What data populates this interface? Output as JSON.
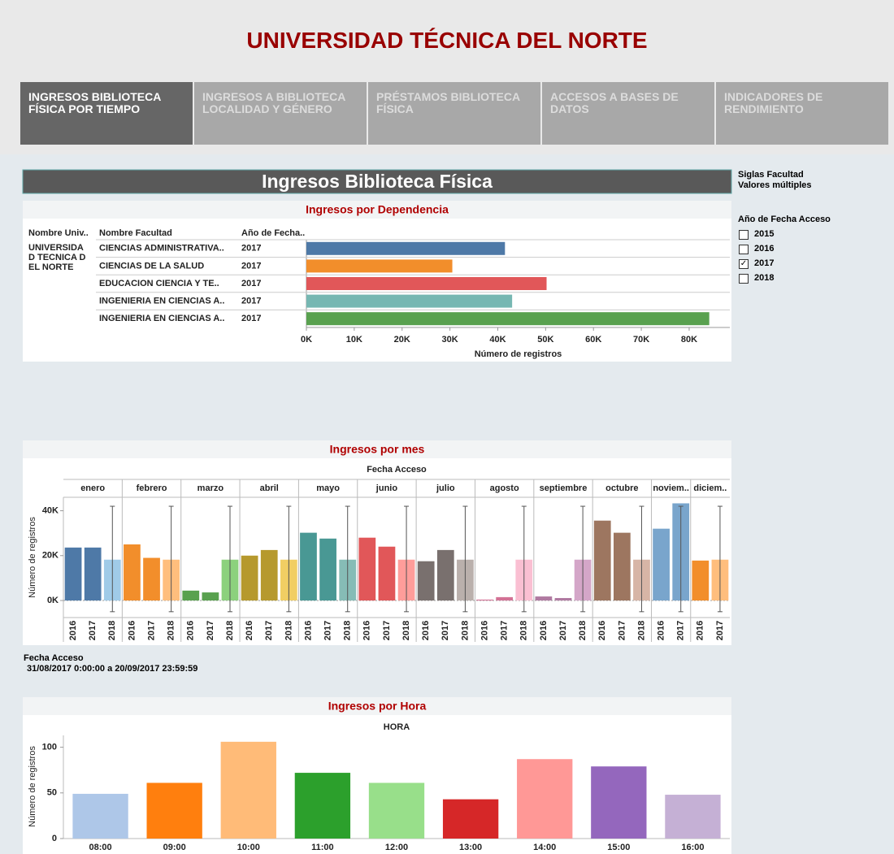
{
  "header": {
    "title": "UNIVERSIDAD TÉCNICA DEL NORTE"
  },
  "tabs": [
    {
      "label": "INGRESOS BIBLIOTECA FÍSICA POR TIEMPO",
      "active": true
    },
    {
      "label": "INGRESOS A BIBLIOTECA LOCALIDAD Y GÉNERO",
      "active": false
    },
    {
      "label": "PRÉSTAMOS BIBLIOTECA FÍSICA",
      "active": false
    },
    {
      "label": "ACCESOS A BASES DE DATOS",
      "active": false
    },
    {
      "label": "INDICADORES DE RENDIMIENTO",
      "active": false
    }
  ],
  "dashboard": {
    "title": "Ingresos Biblioteca Física"
  },
  "filters": {
    "siglas": {
      "label": "Siglas Facultad",
      "value": "Valores múltiples"
    },
    "year": {
      "label": "Año de Fecha Acceso",
      "options": [
        {
          "label": "2015",
          "checked": false
        },
        {
          "label": "2016",
          "checked": false
        },
        {
          "label": "2017",
          "checked": true
        },
        {
          "label": "2018",
          "checked": false
        }
      ]
    }
  },
  "date_filter": {
    "label": "Fecha Acceso",
    "value": "31/08/2017 0:00:00 a 20/09/2017 23:59:59"
  },
  "chart_data": [
    {
      "type": "hbar",
      "title": "Ingresos por Dependencia",
      "columns": [
        "Nombre Univ..",
        "Nombre Facultad",
        "Año de Fecha.."
      ],
      "university": "UNIVERSIDAD TECNICA DEL NORTE",
      "categories": [
        "CIENCIAS ADMINISTRATIVA..",
        "CIENCIAS DE LA SALUD",
        "EDUCACION CIENCIA Y TE..",
        "INGENIERIA EN CIENCIAS A..",
        "INGENIERIA EN CIENCIAS A.."
      ],
      "years": [
        "2017",
        "2017",
        "2017",
        "2017",
        "2017"
      ],
      "values": [
        41500,
        30500,
        50200,
        43000,
        84200
      ],
      "colors": [
        "#4e79a7",
        "#f28e2b",
        "#e15759",
        "#76b7b2",
        "#59a14f"
      ],
      "xlim": [
        0,
        88500
      ],
      "xticks": [
        {
          "value": 0,
          "label": "0K"
        },
        {
          "value": 10000,
          "label": "10K"
        },
        {
          "value": 20000,
          "label": "20K"
        },
        {
          "value": 30000,
          "label": "30K"
        },
        {
          "value": 40000,
          "label": "40K"
        },
        {
          "value": 50000,
          "label": "50K"
        },
        {
          "value": 60000,
          "label": "60K"
        },
        {
          "value": 70000,
          "label": "70K"
        },
        {
          "value": 80000,
          "label": "80K"
        }
      ],
      "xlabel": "Número de registros"
    },
    {
      "type": "grouped",
      "title": "Ingresos por mes",
      "header": "Fecha Acceso",
      "ylabel": "Número de registros",
      "ylim": [
        -7600,
        46000
      ],
      "yticks": [
        {
          "value": 0,
          "label": "0K"
        },
        {
          "value": 20000,
          "label": "20K"
        },
        {
          "value": 40000,
          "label": "40K"
        }
      ],
      "reference_range": [
        -5000,
        42000
      ],
      "groups": [
        {
          "name": "enero",
          "categories": [
            "2016",
            "2017",
            "2018"
          ],
          "values": [
            23600,
            23600,
            18200
          ],
          "colors": [
            "#4e79a7",
            "#4e79a7",
            "#a0cbe8"
          ]
        },
        {
          "name": "febrero",
          "categories": [
            "2016",
            "2017",
            "2018"
          ],
          "values": [
            25000,
            19000,
            18200
          ],
          "colors": [
            "#f28e2b",
            "#f28e2b",
            "#ffbe7d"
          ]
        },
        {
          "name": "marzo",
          "categories": [
            "2016",
            "2017",
            "2018"
          ],
          "values": [
            4400,
            3600,
            18200
          ],
          "colors": [
            "#59a14f",
            "#59a14f",
            "#8cd17d"
          ]
        },
        {
          "name": "abril",
          "categories": [
            "2016",
            "2017",
            "2018"
          ],
          "values": [
            20000,
            22500,
            18200
          ],
          "colors": [
            "#b6992d",
            "#b6992d",
            "#f1ce63"
          ]
        },
        {
          "name": "mayo",
          "categories": [
            "2016",
            "2017",
            "2018"
          ],
          "values": [
            30200,
            27600,
            18200
          ],
          "colors": [
            "#499894",
            "#499894",
            "#86bcb6"
          ]
        },
        {
          "name": "junio",
          "categories": [
            "2016",
            "2017",
            "2018"
          ],
          "values": [
            28000,
            24000,
            18200
          ],
          "colors": [
            "#e15759",
            "#e15759",
            "#ff9d9a"
          ]
        },
        {
          "name": "julio",
          "categories": [
            "2016",
            "2017",
            "2018"
          ],
          "values": [
            17500,
            22500,
            18200
          ],
          "colors": [
            "#79706e",
            "#79706e",
            "#bab0ac"
          ]
        },
        {
          "name": "agosto",
          "categories": [
            "2016",
            "2017",
            "2018"
          ],
          "values": [
            400,
            1500,
            18200
          ],
          "colors": [
            "#d37295",
            "#d37295",
            "#fabfd2"
          ]
        },
        {
          "name": "septiembre",
          "categories": [
            "2016",
            "2017",
            "2018"
          ],
          "values": [
            1800,
            1100,
            18200
          ],
          "colors": [
            "#b07aa1",
            "#b07aa1",
            "#d4a6c8"
          ]
        },
        {
          "name": "octubre",
          "categories": [
            "2016",
            "2017",
            "2018"
          ],
          "values": [
            35600,
            30200,
            18200
          ],
          "colors": [
            "#9d7660",
            "#9d7660",
            "#d7b5a6"
          ]
        },
        {
          "name": "noviem..",
          "categories": [
            "2016",
            "2017"
          ],
          "values": [
            32000,
            43300
          ],
          "colors": [
            "#79a5cc",
            "#79a5cc"
          ]
        },
        {
          "name": "diciem..",
          "categories": [
            "2016",
            "2017"
          ],
          "values": [
            17800,
            18200
          ],
          "colors": [
            "#f28e2b",
            "#ffbe7d"
          ]
        }
      ]
    },
    {
      "type": "bar",
      "title": "Ingresos por Hora",
      "header": "HORA",
      "ylabel": "Número de registros",
      "categories": [
        "08:00",
        "09:00",
        "10:00",
        "11:00",
        "12:00",
        "13:00",
        "14:00",
        "15:00",
        "16:00"
      ],
      "values": [
        49,
        61,
        106,
        72,
        61,
        43,
        87,
        79,
        48
      ],
      "colors": [
        "#aec7e8",
        "#ff7f0e",
        "#ffbb78",
        "#2ca02c",
        "#98df8a",
        "#d62728",
        "#ff9896",
        "#9467bd",
        "#c5b0d5"
      ],
      "ylim": [
        0,
        113
      ],
      "yticks": [
        0,
        50,
        100
      ]
    }
  ]
}
